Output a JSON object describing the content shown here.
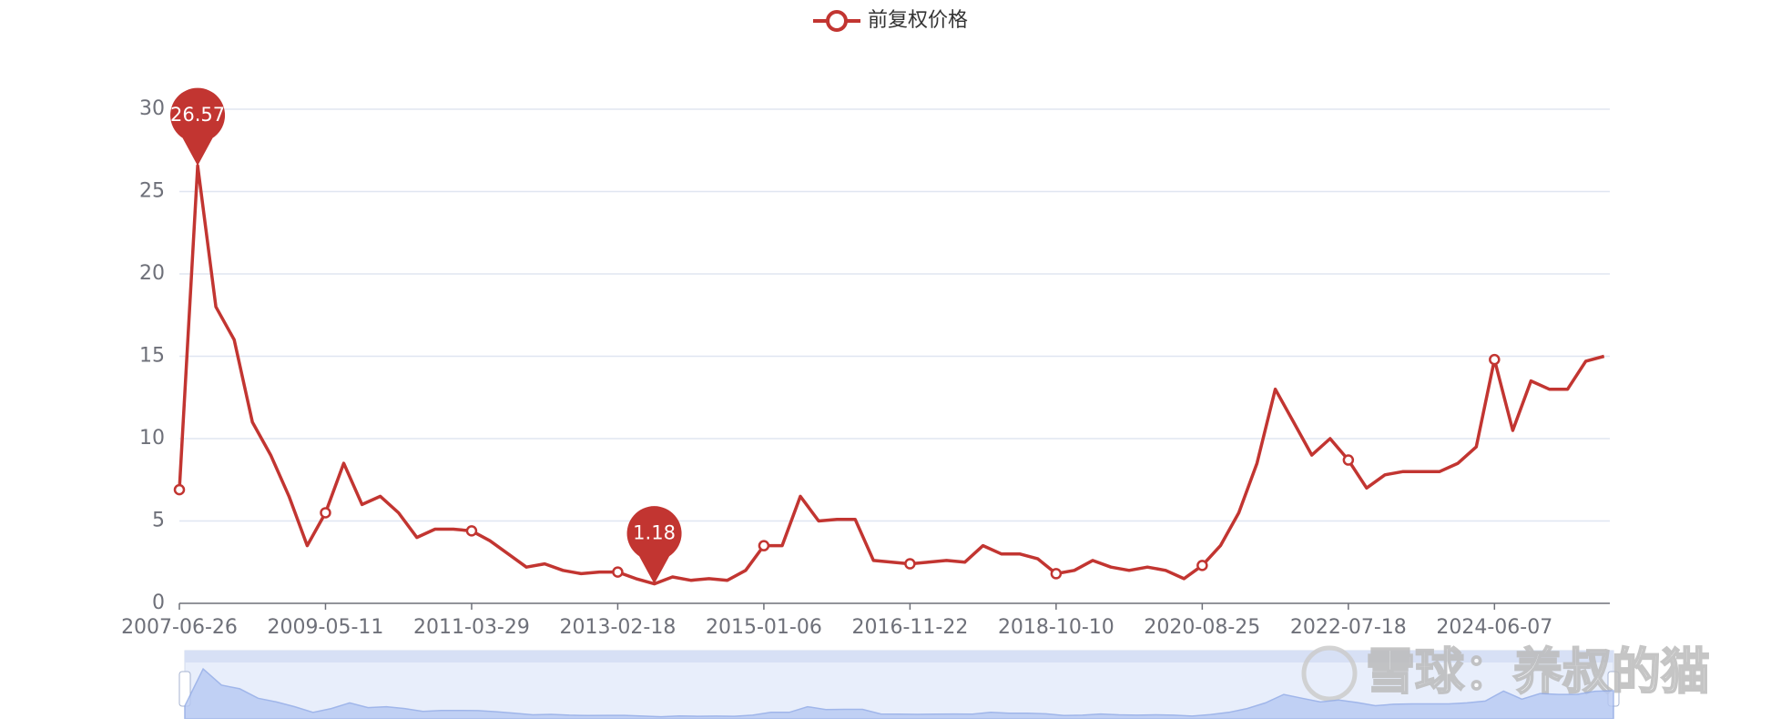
{
  "chart_data": {
    "type": "line",
    "legend_position": "top",
    "watermark": "雪球：养叔的猫",
    "categories": [
      "2007-06-26",
      null,
      null,
      null,
      null,
      null,
      null,
      null,
      "2009-05-11",
      null,
      null,
      null,
      null,
      null,
      null,
      null,
      "2011-03-29",
      null,
      null,
      null,
      null,
      null,
      null,
      null,
      "2013-02-18",
      null,
      null,
      null,
      null,
      null,
      null,
      null,
      "2015-01-06",
      null,
      null,
      null,
      null,
      null,
      null,
      null,
      "2016-11-22",
      null,
      null,
      null,
      null,
      null,
      null,
      null,
      "2018-10-10",
      null,
      null,
      null,
      null,
      null,
      null,
      null,
      "2020-08-25",
      null,
      null,
      null,
      null,
      null,
      null,
      null,
      "2022-07-18",
      null,
      null,
      null,
      null,
      null,
      null,
      null,
      "2024-06-07",
      null,
      null,
      null,
      null,
      null,
      null
    ],
    "series": [
      {
        "name": "前复权价格",
        "color": "#c23531",
        "values": [
          6.9,
          26.57,
          18,
          16,
          11,
          9,
          6.5,
          3.5,
          5.5,
          8.5,
          6,
          6.5,
          5.5,
          4,
          4.5,
          4.5,
          4.4,
          3.8,
          3.0,
          2.2,
          2.4,
          2.0,
          1.8,
          1.9,
          1.9,
          1.5,
          1.18,
          1.6,
          1.4,
          1.5,
          1.4,
          2.0,
          3.5,
          3.5,
          6.5,
          5.0,
          5.1,
          5.1,
          2.6,
          2.5,
          2.4,
          2.5,
          2.6,
          2.5,
          3.5,
          3.0,
          3.0,
          2.7,
          1.8,
          2.0,
          2.6,
          2.2,
          2.0,
          2.2,
          2.0,
          1.5,
          2.3,
          3.5,
          5.5,
          8.5,
          13,
          11,
          9,
          10,
          8.7,
          7.0,
          7.8,
          8.0,
          8.0,
          8.0,
          8.5,
          9.5,
          14.8,
          10.5,
          13.5,
          13,
          13,
          14.7,
          15.0
        ]
      }
    ],
    "ylim": [
      0,
      30
    ],
    "yticks": [
      0,
      5,
      10,
      15,
      20,
      25,
      30
    ],
    "grid": true
  }
}
